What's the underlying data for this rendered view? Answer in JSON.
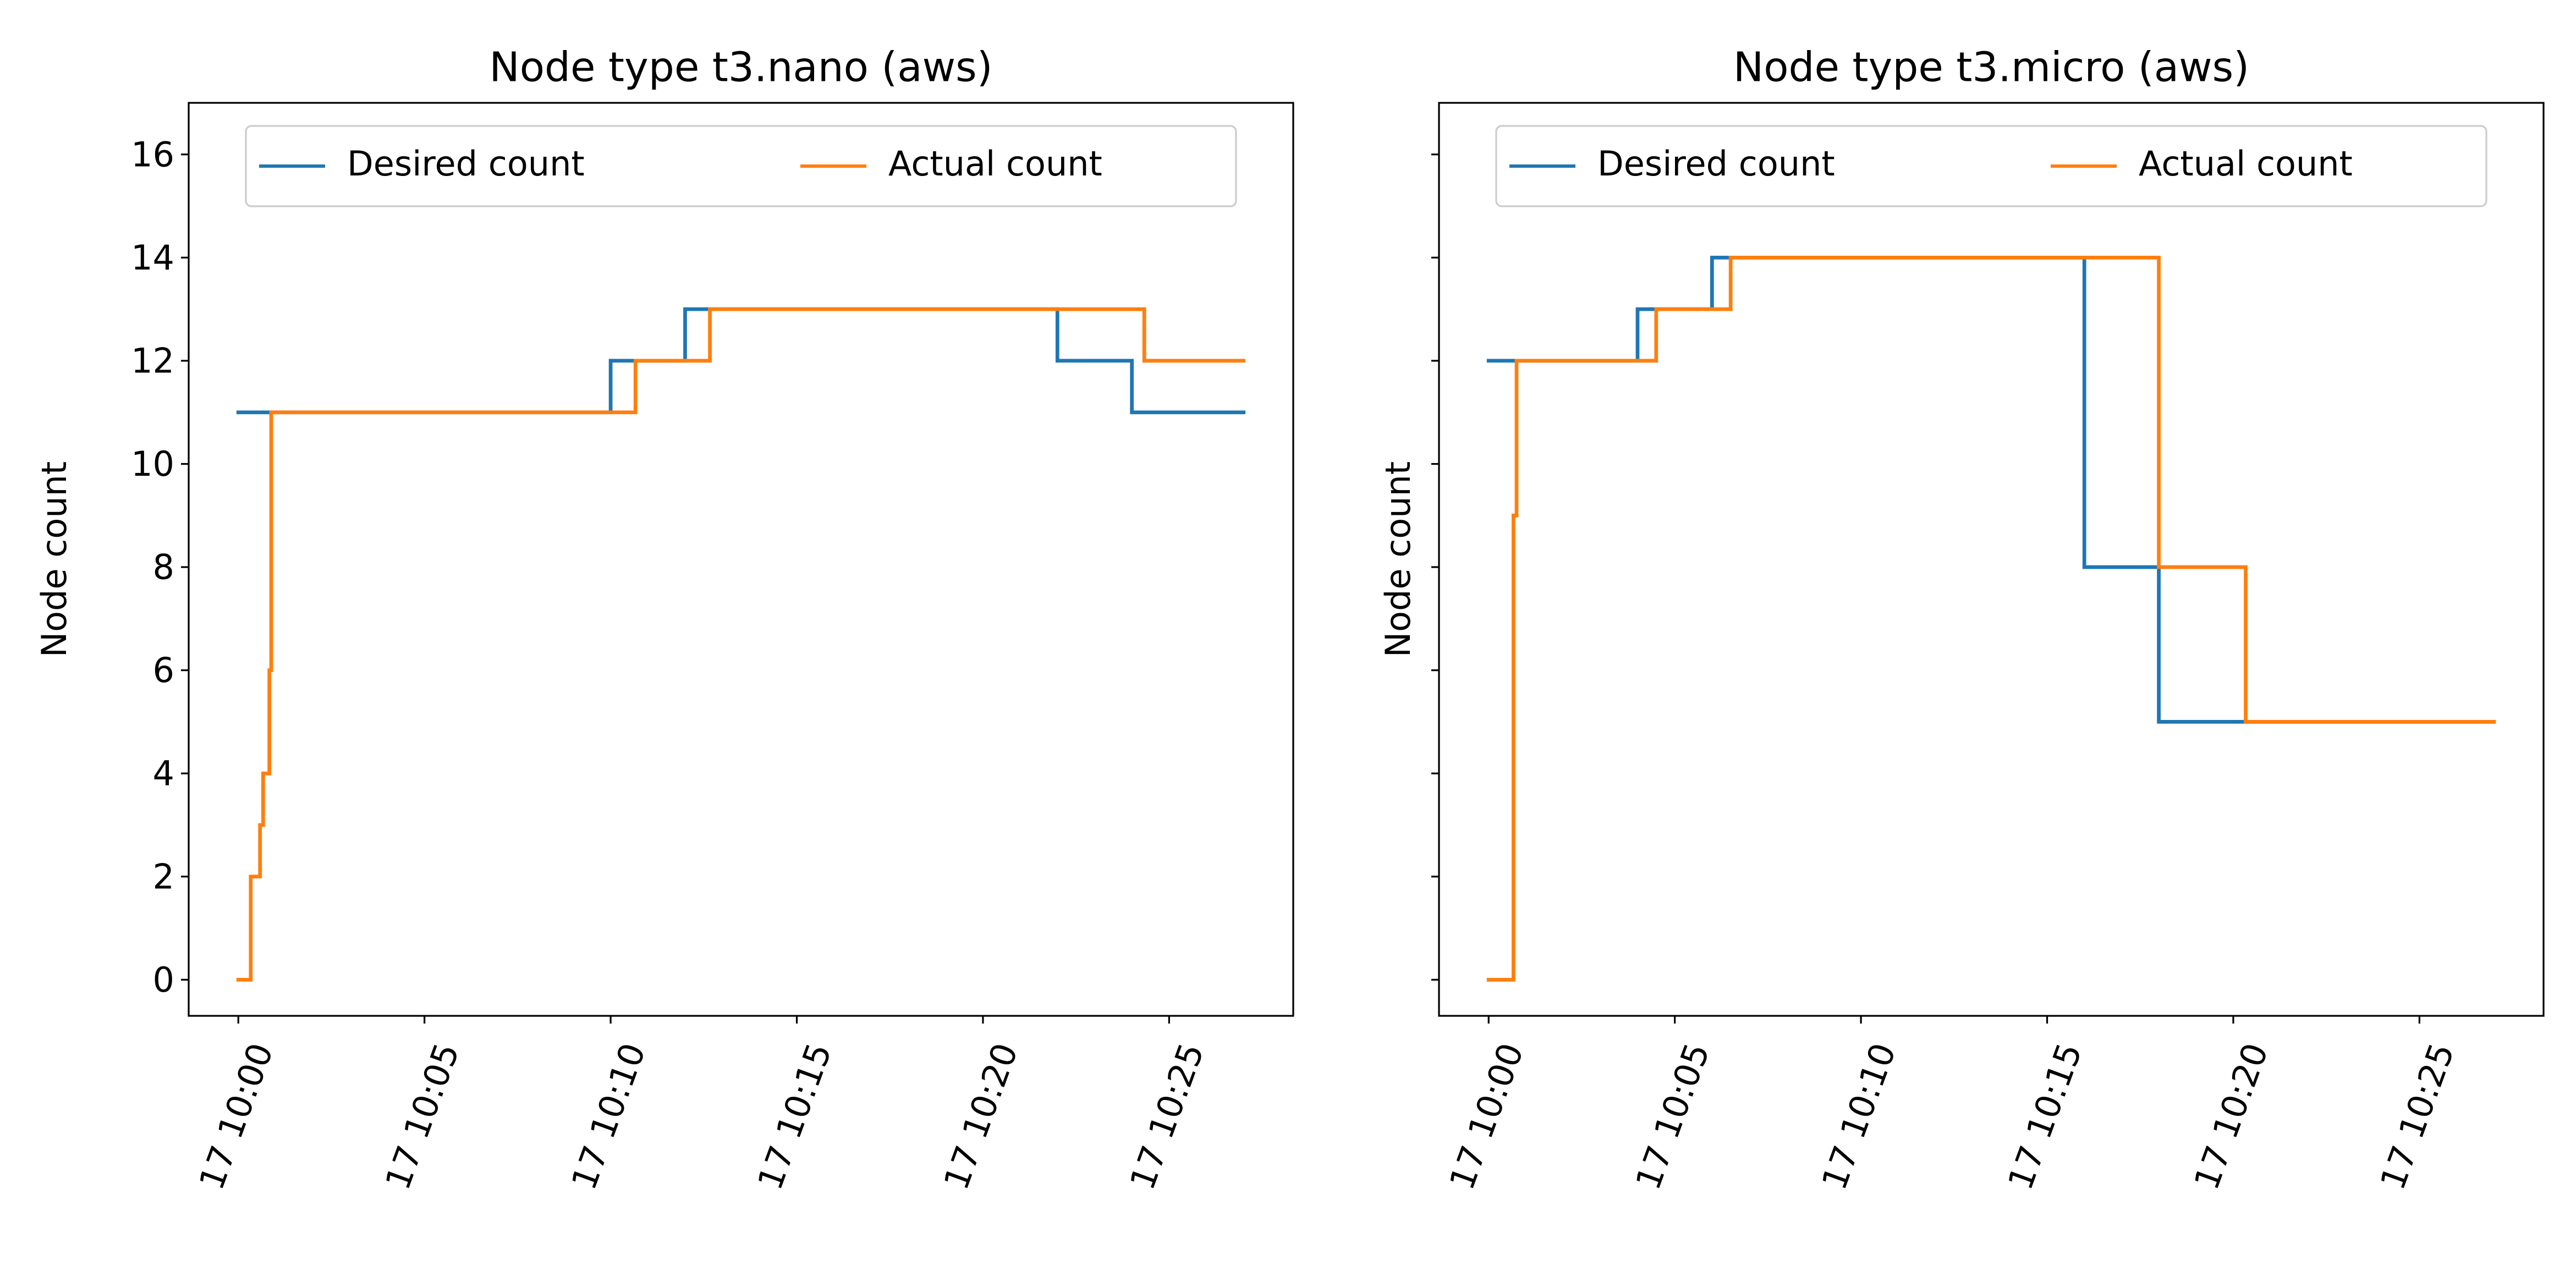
{
  "chart_data": [
    {
      "type": "line",
      "step": "post",
      "title": "Node type t3.nano (aws)",
      "ylabel": "Node count",
      "xlabel": "",
      "xlim": [
        "2023-XX-17 09:58:40",
        "2023-XX-17 10:28:20"
      ],
      "ylim": [
        -0.7,
        17
      ],
      "xticks": [
        "17 10:00",
        "17 10:05",
        "17 10:10",
        "17 10:15",
        "17 10:20",
        "17 10:25"
      ],
      "yticks": [
        "0",
        "2",
        "4",
        "6",
        "8",
        "10",
        "12",
        "14",
        "16"
      ],
      "legend_position": "upper center",
      "series": [
        {
          "name": "Desired count",
          "color": "#1f77b4",
          "points": [
            [
              "10:00:00",
              11
            ],
            [
              "10:10:00",
              12
            ],
            [
              "10:12:00",
              13
            ],
            [
              "10:22:00",
              12
            ],
            [
              "10:24:00",
              11
            ],
            [
              "10:27:00",
              11
            ]
          ]
        },
        {
          "name": "Actual count",
          "color": "#ff7f0e",
          "points": [
            [
              "10:00:00",
              0
            ],
            [
              "10:00:20",
              2
            ],
            [
              "10:00:35",
              3
            ],
            [
              "10:00:40",
              4
            ],
            [
              "10:00:50",
              6
            ],
            [
              "10:00:53",
              11
            ],
            [
              "10:10:40",
              12
            ],
            [
              "10:12:40",
              13
            ],
            [
              "10:24:20",
              12
            ],
            [
              "10:27:00",
              12
            ]
          ]
        }
      ]
    },
    {
      "type": "line",
      "step": "post",
      "title": "Node type t3.micro (aws)",
      "ylabel": "Node count",
      "xlabel": "",
      "xlim": [
        "2023-XX-17 09:58:40",
        "2023-XX-17 10:28:20"
      ],
      "ylim": [
        -0.7,
        17
      ],
      "xticks": [
        "17 10:00",
        "17 10:05",
        "17 10:10",
        "17 10:15",
        "17 10:20",
        "17 10:25"
      ],
      "yticks": [
        "0",
        "2",
        "4",
        "6",
        "8",
        "10",
        "12",
        "14",
        "16"
      ],
      "shared_y": true,
      "legend_position": "upper center",
      "series": [
        {
          "name": "Desired count",
          "color": "#1f77b4",
          "points": [
            [
              "10:00:00",
              12
            ],
            [
              "10:04:00",
              13
            ],
            [
              "10:06:00",
              14
            ],
            [
              "10:16:00",
              8
            ],
            [
              "10:18:00",
              5
            ],
            [
              "10:27:00",
              5
            ]
          ]
        },
        {
          "name": "Actual count",
          "color": "#ff7f0e",
          "points": [
            [
              "10:00:00",
              0
            ],
            [
              "10:00:40",
              9
            ],
            [
              "10:00:45",
              12
            ],
            [
              "10:04:30",
              13
            ],
            [
              "10:06:30",
              14
            ],
            [
              "10:18:00",
              8
            ],
            [
              "10:20:20",
              5
            ],
            [
              "10:27:00",
              5
            ]
          ]
        }
      ]
    }
  ]
}
